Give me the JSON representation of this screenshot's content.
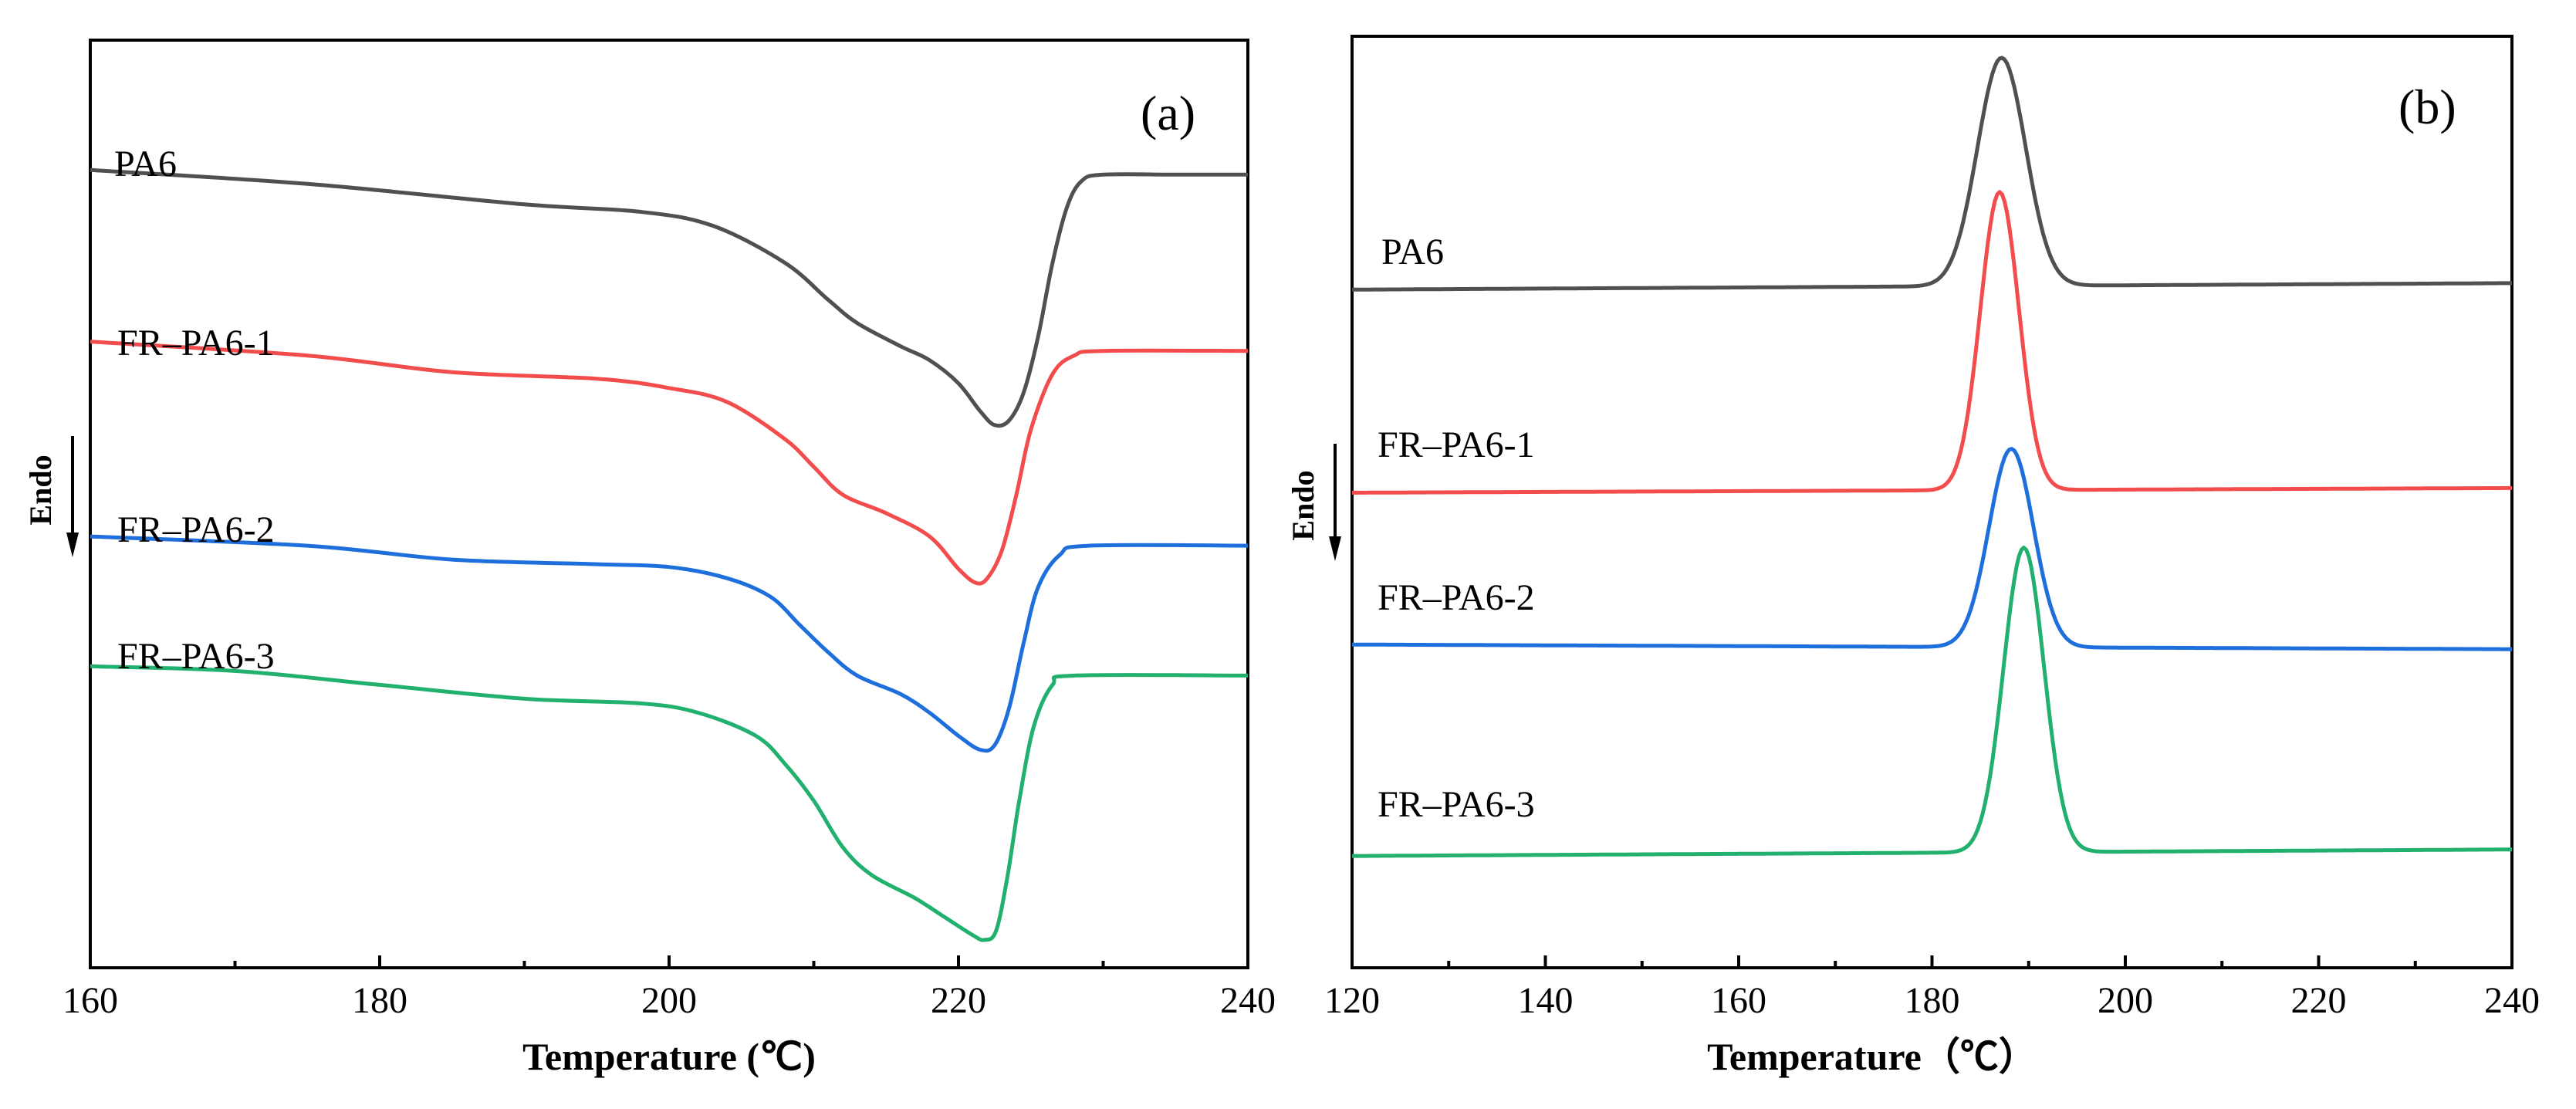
{
  "chart_data": [
    {
      "type": "line",
      "panel_label": "(a)",
      "title": "",
      "xlabel": "Temperature (℃)",
      "ylabel": "Endo",
      "xlim": [
        160,
        240
      ],
      "x_ticks": [
        "160",
        "180",
        "200",
        "220",
        "240"
      ],
      "x_tick_values": [
        160,
        180,
        200,
        220,
        240
      ],
      "y_ticks": [],
      "grid": false,
      "series": [
        {
          "name": "PA6",
          "color": "#505050",
          "points": [
            [
              160,
              0.86
            ],
            [
              175,
              0.845
            ],
            [
              190,
              0.823
            ],
            [
              198,
              0.815
            ],
            [
              203,
              0.8
            ],
            [
              208,
              0.76
            ],
            [
              211,
              0.72
            ],
            [
              213,
              0.695
            ],
            [
              216,
              0.67
            ],
            [
              218,
              0.655
            ],
            [
              220,
              0.63
            ],
            [
              221.5,
              0.6
            ],
            [
              222.5,
              0.585
            ],
            [
              223.5,
              0.59
            ],
            [
              224.5,
              0.62
            ],
            [
              225.5,
              0.68
            ],
            [
              226.5,
              0.76
            ],
            [
              227.5,
              0.82
            ],
            [
              228.5,
              0.848
            ],
            [
              230,
              0.855
            ],
            [
              235,
              0.855
            ],
            [
              240,
              0.855
            ]
          ]
        },
        {
          "name": "FR–PA6-1",
          "color": "#f24c4c",
          "points": [
            [
              160,
              0.675
            ],
            [
              175,
              0.66
            ],
            [
              185,
              0.642
            ],
            [
              195,
              0.635
            ],
            [
              200,
              0.625
            ],
            [
              204,
              0.61
            ],
            [
              208,
              0.57
            ],
            [
              210,
              0.54
            ],
            [
              212,
              0.51
            ],
            [
              215,
              0.49
            ],
            [
              218,
              0.465
            ],
            [
              220,
              0.43
            ],
            [
              221.2,
              0.415
            ],
            [
              222,
              0.42
            ],
            [
              223,
              0.45
            ],
            [
              224,
              0.51
            ],
            [
              225,
              0.58
            ],
            [
              226.5,
              0.64
            ],
            [
              228,
              0.66
            ],
            [
              230,
              0.665
            ],
            [
              240,
              0.665
            ]
          ]
        },
        {
          "name": "FR–PA6-2",
          "color": "#1e6fdc",
          "points": [
            [
              160,
              0.465
            ],
            [
              175,
              0.455
            ],
            [
              185,
              0.44
            ],
            [
              195,
              0.435
            ],
            [
              200,
              0.432
            ],
            [
              204,
              0.42
            ],
            [
              207,
              0.4
            ],
            [
              209,
              0.37
            ],
            [
              211,
              0.34
            ],
            [
              213,
              0.315
            ],
            [
              216,
              0.295
            ],
            [
              218,
              0.275
            ],
            [
              220,
              0.25
            ],
            [
              221.5,
              0.235
            ],
            [
              222.5,
              0.24
            ],
            [
              223.5,
              0.28
            ],
            [
              224.5,
              0.35
            ],
            [
              225.5,
              0.41
            ],
            [
              227,
              0.445
            ],
            [
              229,
              0.455
            ],
            [
              240,
              0.455
            ]
          ]
        },
        {
          "name": "FR–PA6-3",
          "color": "#22b06e",
          "points": [
            [
              160,
              0.325
            ],
            [
              170,
              0.32
            ],
            [
              180,
              0.305
            ],
            [
              190,
              0.29
            ],
            [
              198,
              0.285
            ],
            [
              202,
              0.275
            ],
            [
              206,
              0.25
            ],
            [
              208,
              0.22
            ],
            [
              210,
              0.18
            ],
            [
              212,
              0.13
            ],
            [
              214,
              0.1
            ],
            [
              217,
              0.075
            ],
            [
              219,
              0.055
            ],
            [
              221,
              0.035
            ],
            [
              221.8,
              0.03
            ],
            [
              222.6,
              0.04
            ],
            [
              223.4,
              0.1
            ],
            [
              224.2,
              0.18
            ],
            [
              225.2,
              0.26
            ],
            [
              226.5,
              0.305
            ],
            [
              228,
              0.315
            ],
            [
              240,
              0.315
            ]
          ]
        }
      ]
    },
    {
      "type": "line",
      "panel_label": "(b)",
      "title": "",
      "xlabel": "Temperature（℃）",
      "ylabel": "Endo",
      "xlim": [
        120,
        240
      ],
      "x_ticks": [
        "120",
        "140",
        "160",
        "180",
        "200",
        "220",
        "240"
      ],
      "x_tick_values": [
        120,
        140,
        160,
        180,
        200,
        220,
        240
      ],
      "y_ticks": [],
      "grid": false,
      "series": [
        {
          "name": "PA6",
          "color": "#505050",
          "baseline": 0.728,
          "baseline_end": 0.735,
          "peak_x": 187.2,
          "peak_height": 0.245,
          "sigma": 2.5
        },
        {
          "name": "FR–PA6-1",
          "color": "#f24c4c",
          "baseline": 0.51,
          "baseline_end": 0.515,
          "peak_x": 187.0,
          "peak_height": 0.32,
          "sigma": 2.0
        },
        {
          "name": "FR–PA6-2",
          "color": "#1e6fdc",
          "baseline": 0.347,
          "baseline_end": 0.342,
          "peak_x": 188.2,
          "peak_height": 0.213,
          "sigma": 2.3
        },
        {
          "name": "FR–PA6-3",
          "color": "#22b06e",
          "baseline": 0.12,
          "baseline_end": 0.127,
          "peak_x": 189.5,
          "peak_height": 0.327,
          "sigma": 2.1
        }
      ]
    }
  ]
}
